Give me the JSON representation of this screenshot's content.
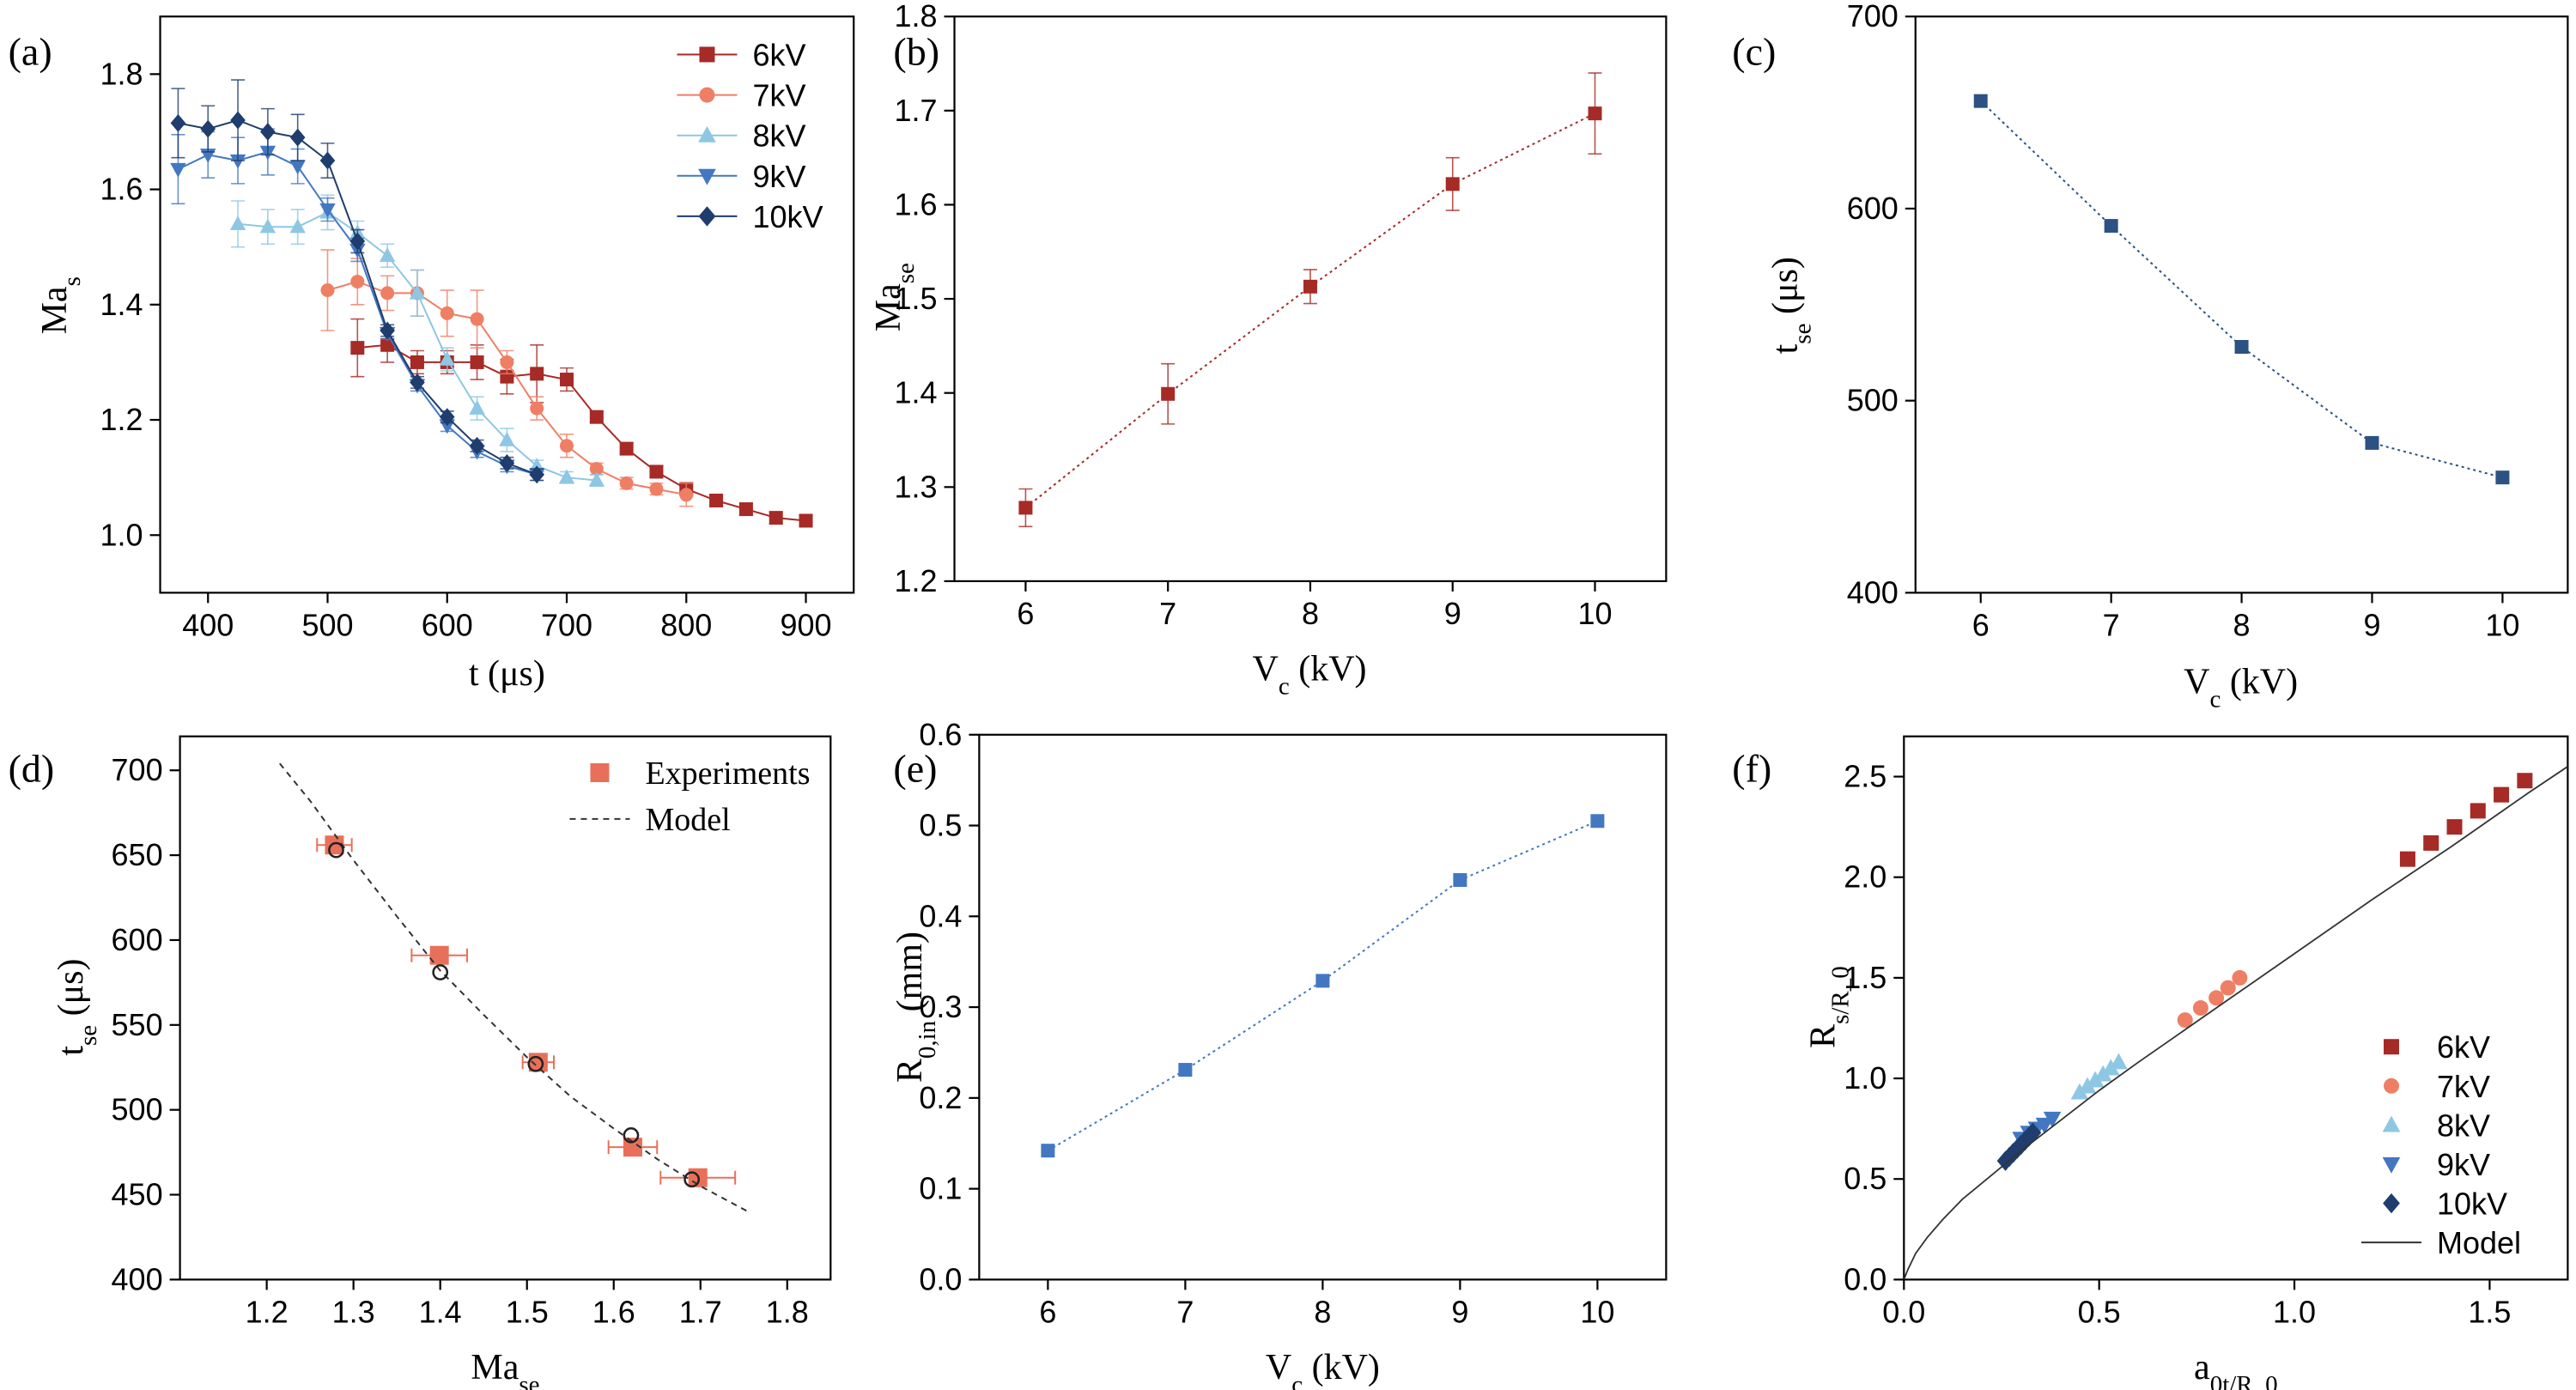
{
  "figure": {
    "panels": [
      {
        "id": "a",
        "label": "(a)"
      },
      {
        "id": "b",
        "label": "(b)"
      },
      {
        "id": "c",
        "label": "(c)"
      },
      {
        "id": "d",
        "label": "(d)"
      },
      {
        "id": "e",
        "label": "(e)"
      },
      {
        "id": "f",
        "label": "(f)"
      }
    ]
  },
  "chart_data": [
    {
      "panel": "(a)",
      "type": "line",
      "xlabel": "t (μs)",
      "ylabel": "Ma_s",
      "xlim": [
        360,
        940
      ],
      "ylim": [
        0.9,
        1.9
      ],
      "xticks": [
        400,
        500,
        600,
        700,
        800,
        900
      ],
      "yticks": [
        1.0,
        1.2,
        1.4,
        1.6,
        1.8
      ],
      "legend": "top-right",
      "series": [
        {
          "name": "6kV",
          "color": "#a62a26",
          "marker": "square",
          "x": [
            525,
            550,
            575,
            600,
            625,
            650,
            675,
            700,
            725,
            750,
            775,
            800,
            825,
            850,
            875,
            900
          ],
          "y": [
            1.325,
            1.33,
            1.3,
            1.3,
            1.3,
            1.275,
            1.28,
            1.27,
            1.205,
            1.15,
            1.11,
            1.08,
            1.06,
            1.045,
            1.03,
            1.025
          ],
          "err": [
            0.05,
            0.03,
            0.02,
            0.02,
            0.03,
            0.03,
            0.05,
            0.02,
            0.01,
            0.01,
            0.01,
            0.01,
            0.01,
            0.01,
            0.01,
            0.01
          ]
        },
        {
          "name": "7kV",
          "color": "#ee7f65",
          "marker": "circle",
          "x": [
            500,
            525,
            550,
            575,
            600,
            625,
            650,
            675,
            700,
            725,
            750,
            775,
            800
          ],
          "y": [
            1.425,
            1.44,
            1.42,
            1.42,
            1.385,
            1.375,
            1.3,
            1.22,
            1.155,
            1.115,
            1.09,
            1.08,
            1.07
          ],
          "err": [
            0.07,
            0.04,
            0.03,
            0.04,
            0.04,
            0.05,
            0.02,
            0.02,
            0.02,
            0.01,
            0.01,
            0.01,
            0.02
          ]
        },
        {
          "name": "8kV",
          "color": "#8ec7e3",
          "marker": "triangle-up",
          "x": [
            425,
            450,
            475,
            500,
            525,
            550,
            575,
            600,
            625,
            650,
            675,
            700,
            725
          ],
          "y": [
            1.54,
            1.535,
            1.535,
            1.56,
            1.525,
            1.485,
            1.42,
            1.305,
            1.22,
            1.165,
            1.12,
            1.1,
            1.095
          ],
          "err": [
            0.04,
            0.03,
            0.03,
            0.03,
            0.02,
            0.02,
            0.04,
            0.02,
            0.02,
            0.02,
            0.01,
            0.01,
            0.01
          ]
        },
        {
          "name": "9kV",
          "color": "#4378c1",
          "marker": "triangle-down",
          "x": [
            375,
            400,
            425,
            450,
            475,
            500,
            525,
            550,
            575,
            600,
            625,
            650,
            675
          ],
          "y": [
            1.635,
            1.66,
            1.65,
            1.665,
            1.64,
            1.565,
            1.495,
            1.35,
            1.26,
            1.19,
            1.145,
            1.12,
            1.105
          ],
          "err": [
            0.06,
            0.04,
            0.04,
            0.04,
            0.03,
            0.02,
            0.02,
            0.01,
            0.01,
            0.01,
            0.01,
            0.01,
            0.01
          ]
        },
        {
          "name": "10kV",
          "color": "#1f3d6d",
          "marker": "diamond",
          "x": [
            375,
            400,
            425,
            450,
            475,
            500,
            525,
            550,
            575,
            600,
            625,
            650,
            675
          ],
          "y": [
            1.715,
            1.705,
            1.72,
            1.7,
            1.69,
            1.65,
            1.51,
            1.355,
            1.265,
            1.205,
            1.155,
            1.125,
            1.105
          ],
          "err": [
            0.06,
            0.04,
            0.07,
            0.04,
            0.04,
            0.03,
            0.02,
            0.01,
            0.01,
            0.01,
            0.01,
            0.01,
            0.01
          ]
        }
      ]
    },
    {
      "panel": "(b)",
      "type": "line",
      "xlabel": "V_c (kV)",
      "ylabel": "Ma_se",
      "xlim": [
        5.5,
        10.5
      ],
      "ylim": [
        1.2,
        1.8
      ],
      "xticks": [
        6,
        7,
        8,
        9,
        10
      ],
      "yticks": [
        1.2,
        1.3,
        1.4,
        1.5,
        1.6,
        1.7,
        1.8
      ],
      "series": [
        {
          "color": "#a62a26",
          "marker": "square",
          "dotted_line": true,
          "x": [
            6,
            7,
            8,
            9,
            10
          ],
          "y": [
            1.278,
            1.399,
            1.513,
            1.622,
            1.697
          ],
          "err": [
            0.02,
            0.032,
            0.018,
            0.028,
            0.043
          ]
        }
      ]
    },
    {
      "panel": "(c)",
      "type": "line",
      "xlabel": "V_c (kV)",
      "ylabel": "t_se (μs)",
      "xlim": [
        5.5,
        10.5
      ],
      "ylim": [
        400,
        700
      ],
      "xticks": [
        6,
        7,
        8,
        9,
        10
      ],
      "yticks": [
        400,
        500,
        600,
        700
      ],
      "series": [
        {
          "color": "#2c5183",
          "marker": "square",
          "dotted_line": true,
          "x": [
            6,
            7,
            8,
            9,
            10
          ],
          "y": [
            656,
            591,
            528,
            478,
            460
          ]
        }
      ]
    },
    {
      "panel": "(d)",
      "type": "scatter",
      "xlabel": "Ma_se",
      "ylabel": "t_se (μs)",
      "xlim": [
        1.1,
        1.85
      ],
      "ylim": [
        400,
        720
      ],
      "xticks": [
        1.2,
        1.3,
        1.4,
        1.5,
        1.6,
        1.7,
        1.8
      ],
      "yticks": [
        400,
        450,
        500,
        550,
        600,
        650,
        700
      ],
      "legend": "top-right",
      "series": [
        {
          "name": "Experiments",
          "color": "#e8705a",
          "marker": "square",
          "x": [
            1.278,
            1.399,
            1.513,
            1.622,
            1.697
          ],
          "y": [
            656,
            591,
            528,
            478,
            460
          ],
          "xerr": [
            0.02,
            0.032,
            0.018,
            0.028,
            0.043
          ]
        },
        {
          "name": "Model",
          "color": "#333333",
          "style": "dashed",
          "x": [
            1.215,
            1.25,
            1.3,
            1.35,
            1.4,
            1.45,
            1.5,
            1.55,
            1.6,
            1.65,
            1.7,
            1.755
          ],
          "y": [
            704,
            682,
            647,
            614,
            582,
            556,
            531,
            508,
            489,
            471,
            455,
            440
          ]
        },
        {
          "color": "#222222",
          "marker": "open-circle",
          "x": [
            1.28,
            1.4,
            1.51,
            1.62,
            1.69
          ],
          "y": [
            653,
            581,
            527,
            485,
            459
          ]
        }
      ]
    },
    {
      "panel": "(e)",
      "type": "line",
      "xlabel": "V_c (kV)",
      "ylabel": "R_0,in (mm)",
      "xlim": [
        5.5,
        10.5
      ],
      "ylim": [
        0.0,
        0.6
      ],
      "xticks": [
        6,
        7,
        8,
        9,
        10
      ],
      "yticks": [
        0.0,
        0.1,
        0.2,
        0.3,
        0.4,
        0.5,
        0.6
      ],
      "series": [
        {
          "color": "#4378c1",
          "marker": "square",
          "dotted_line": true,
          "x": [
            6,
            7,
            8,
            9,
            10
          ],
          "y": [
            0.142,
            0.231,
            0.329,
            0.44,
            0.505
          ]
        }
      ]
    },
    {
      "panel": "(f)",
      "type": "scatter",
      "xlabel": "a_0t/R_0",
      "ylabel": "R_s/R_0",
      "xlim": [
        0.0,
        1.7
      ],
      "ylim": [
        0.0,
        2.7
      ],
      "xticks": [
        0.0,
        0.5,
        1.0,
        1.5
      ],
      "yticks": [
        0.0,
        0.5,
        1.0,
        1.5,
        2.0,
        2.5
      ],
      "legend": "bottom-right",
      "series": [
        {
          "name": "6kV",
          "color": "#a62a26",
          "marker": "square",
          "x": [
            1.29,
            1.35,
            1.41,
            1.47,
            1.53,
            1.59
          ],
          "y": [
            2.09,
            2.17,
            2.25,
            2.33,
            2.41,
            2.48
          ]
        },
        {
          "name": "7kV",
          "color": "#ee7f65",
          "marker": "circle",
          "x": [
            0.72,
            0.76,
            0.8,
            0.83,
            0.86
          ],
          "y": [
            1.29,
            1.35,
            1.4,
            1.45,
            1.5
          ]
        },
        {
          "name": "8kV",
          "color": "#8ec7e3",
          "marker": "triangle-up",
          "x": [
            0.45,
            0.47,
            0.49,
            0.51,
            0.53,
            0.55
          ],
          "y": [
            0.93,
            0.96,
            0.99,
            1.02,
            1.05,
            1.08
          ]
        },
        {
          "name": "9kV",
          "color": "#4378c1",
          "marker": "triangle-down",
          "x": [
            0.3,
            0.32,
            0.34,
            0.36,
            0.38
          ],
          "y": [
            0.7,
            0.73,
            0.75,
            0.77,
            0.8
          ]
        },
        {
          "name": "10kV",
          "color": "#1f3d6d",
          "marker": "diamond",
          "x": [
            0.26,
            0.27,
            0.28,
            0.29,
            0.3,
            0.31,
            0.32,
            0.33
          ],
          "y": [
            0.59,
            0.61,
            0.63,
            0.65,
            0.67,
            0.69,
            0.71,
            0.73
          ]
        },
        {
          "name": "Model",
          "color": "#333333",
          "style": "solid",
          "x": [
            0.0,
            0.01,
            0.03,
            0.06,
            0.1,
            0.15,
            0.2,
            0.3,
            0.4,
            0.5,
            0.6,
            0.8,
            1.0,
            1.2,
            1.4,
            1.6,
            1.7
          ],
          "y": [
            0.0,
            0.05,
            0.13,
            0.21,
            0.3,
            0.4,
            0.48,
            0.64,
            0.79,
            0.94,
            1.08,
            1.35,
            1.62,
            1.89,
            2.15,
            2.42,
            2.55
          ]
        }
      ]
    }
  ]
}
